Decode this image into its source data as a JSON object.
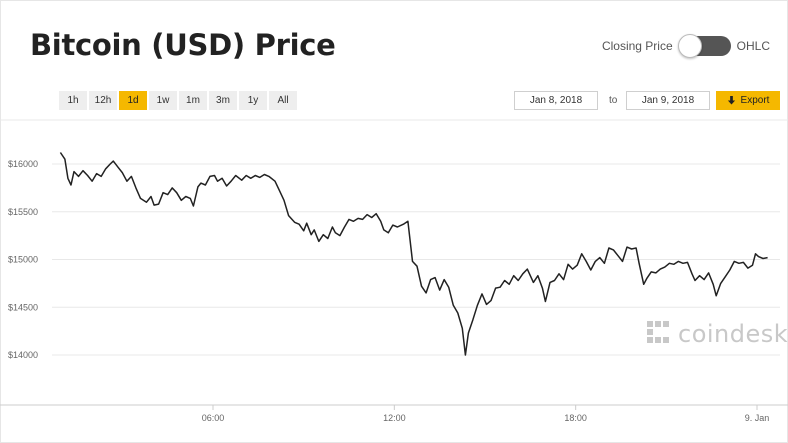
{
  "title": "Bitcoin (USD) Price",
  "toggle": {
    "left_label": "Closing Price",
    "right_label": "OHLC"
  },
  "ranges": [
    {
      "label": "1h",
      "active": false
    },
    {
      "label": "12h",
      "active": false
    },
    {
      "label": "1d",
      "active": true
    },
    {
      "label": "1w",
      "active": false
    },
    {
      "label": "1m",
      "active": false
    },
    {
      "label": "3m",
      "active": false
    },
    {
      "label": "1y",
      "active": false
    },
    {
      "label": "All",
      "active": false
    }
  ],
  "date_range": {
    "from": "Jan 8, 2018",
    "to_label": "to",
    "to": "Jan 9, 2018"
  },
  "export_label": "Export",
  "brand": {
    "name": "coindesk"
  },
  "colors": {
    "accent": "#f5b800",
    "line": "#222222",
    "grid": "#e8e8e8"
  },
  "chart_data": {
    "type": "line",
    "xlabel": "",
    "ylabel": "",
    "ylim": [
      13900,
      16100
    ],
    "yticks": [
      {
        "value": 16000,
        "label": "$16000"
      },
      {
        "value": 15500,
        "label": "$15500"
      },
      {
        "value": 15000,
        "label": "$15000"
      },
      {
        "value": 14500,
        "label": "$14500"
      },
      {
        "value": 14000,
        "label": "$14000"
      }
    ],
    "xlim": [
      0,
      24.1
    ],
    "xticks": [
      {
        "value": 5.0,
        "label": "06:00"
      },
      {
        "value": 11.0,
        "label": "12:00"
      },
      {
        "value": 17.0,
        "label": "18:00"
      },
      {
        "value": 23.0,
        "label": "9. Jan"
      }
    ],
    "series": [
      {
        "values": [
          [
            -0.05,
            16120
          ],
          [
            0.1,
            16050
          ],
          [
            0.2,
            15850
          ],
          [
            0.3,
            15780
          ],
          [
            0.4,
            15920
          ],
          [
            0.55,
            15870
          ],
          [
            0.7,
            15930
          ],
          [
            0.85,
            15880
          ],
          [
            1.0,
            15820
          ],
          [
            1.15,
            15900
          ],
          [
            1.3,
            15870
          ],
          [
            1.45,
            15950
          ],
          [
            1.6,
            16000
          ],
          [
            1.7,
            16030
          ],
          [
            1.85,
            15970
          ],
          [
            2.0,
            15910
          ],
          [
            2.15,
            15820
          ],
          [
            2.3,
            15870
          ],
          [
            2.45,
            15750
          ],
          [
            2.6,
            15640
          ],
          [
            2.8,
            15600
          ],
          [
            2.95,
            15660
          ],
          [
            3.05,
            15570
          ],
          [
            3.2,
            15580
          ],
          [
            3.35,
            15700
          ],
          [
            3.5,
            15680
          ],
          [
            3.65,
            15750
          ],
          [
            3.8,
            15700
          ],
          [
            3.95,
            15620
          ],
          [
            4.1,
            15660
          ],
          [
            4.25,
            15640
          ],
          [
            4.35,
            15560
          ],
          [
            4.5,
            15760
          ],
          [
            4.6,
            15800
          ],
          [
            4.75,
            15780
          ],
          [
            4.9,
            15870
          ],
          [
            5.05,
            15880
          ],
          [
            5.15,
            15820
          ],
          [
            5.3,
            15850
          ],
          [
            5.45,
            15770
          ],
          [
            5.6,
            15820
          ],
          [
            5.75,
            15880
          ],
          [
            5.95,
            15830
          ],
          [
            6.1,
            15880
          ],
          [
            6.25,
            15850
          ],
          [
            6.4,
            15880
          ],
          [
            6.55,
            15860
          ],
          [
            6.7,
            15890
          ],
          [
            6.85,
            15870
          ],
          [
            7.05,
            15820
          ],
          [
            7.2,
            15720
          ],
          [
            7.35,
            15620
          ],
          [
            7.5,
            15460
          ],
          [
            7.7,
            15390
          ],
          [
            7.85,
            15370
          ],
          [
            8.0,
            15300
          ],
          [
            8.1,
            15380
          ],
          [
            8.25,
            15260
          ],
          [
            8.35,
            15310
          ],
          [
            8.5,
            15190
          ],
          [
            8.65,
            15260
          ],
          [
            8.8,
            15220
          ],
          [
            8.95,
            15340
          ],
          [
            9.05,
            15280
          ],
          [
            9.2,
            15250
          ],
          [
            9.35,
            15340
          ],
          [
            9.5,
            15420
          ],
          [
            9.65,
            15400
          ],
          [
            9.8,
            15430
          ],
          [
            9.95,
            15420
          ],
          [
            10.1,
            15470
          ],
          [
            10.25,
            15440
          ],
          [
            10.4,
            15480
          ],
          [
            10.55,
            15400
          ],
          [
            10.65,
            15310
          ],
          [
            10.8,
            15280
          ],
          [
            10.95,
            15360
          ],
          [
            11.1,
            15340
          ],
          [
            11.3,
            15370
          ],
          [
            11.45,
            15400
          ],
          [
            11.6,
            14980
          ],
          [
            11.75,
            14930
          ],
          [
            11.9,
            14720
          ],
          [
            12.05,
            14650
          ],
          [
            12.2,
            14790
          ],
          [
            12.35,
            14810
          ],
          [
            12.5,
            14680
          ],
          [
            12.65,
            14790
          ],
          [
            12.8,
            14710
          ],
          [
            12.95,
            14520
          ],
          [
            13.1,
            14440
          ],
          [
            13.25,
            14280
          ],
          [
            13.35,
            14000
          ],
          [
            13.45,
            14230
          ],
          [
            13.6,
            14370
          ],
          [
            13.75,
            14520
          ],
          [
            13.9,
            14640
          ],
          [
            14.05,
            14530
          ],
          [
            14.2,
            14570
          ],
          [
            14.35,
            14700
          ],
          [
            14.5,
            14710
          ],
          [
            14.65,
            14780
          ],
          [
            14.8,
            14740
          ],
          [
            14.95,
            14830
          ],
          [
            15.1,
            14780
          ],
          [
            15.25,
            14850
          ],
          [
            15.4,
            14900
          ],
          [
            15.6,
            14760
          ],
          [
            15.75,
            14830
          ],
          [
            15.9,
            14700
          ],
          [
            16.0,
            14560
          ],
          [
            16.15,
            14760
          ],
          [
            16.3,
            14780
          ],
          [
            16.45,
            14850
          ],
          [
            16.6,
            14790
          ],
          [
            16.75,
            14950
          ],
          [
            16.9,
            14900
          ],
          [
            17.05,
            14940
          ],
          [
            17.2,
            15060
          ],
          [
            17.35,
            14980
          ],
          [
            17.5,
            14890
          ],
          [
            17.65,
            14980
          ],
          [
            17.8,
            15020
          ],
          [
            17.95,
            14960
          ],
          [
            18.1,
            15120
          ],
          [
            18.25,
            15100
          ],
          [
            18.4,
            15040
          ],
          [
            18.55,
            14980
          ],
          [
            18.7,
            15130
          ],
          [
            18.85,
            15110
          ],
          [
            19.0,
            15120
          ],
          [
            19.1,
            14960
          ],
          [
            19.25,
            14740
          ],
          [
            19.35,
            14800
          ],
          [
            19.5,
            14870
          ],
          [
            19.65,
            14860
          ],
          [
            19.8,
            14900
          ],
          [
            19.95,
            14920
          ],
          [
            20.1,
            14960
          ],
          [
            20.25,
            14950
          ],
          [
            20.4,
            14980
          ],
          [
            20.55,
            14960
          ],
          [
            20.7,
            14970
          ],
          [
            20.85,
            14850
          ],
          [
            20.95,
            14780
          ],
          [
            21.1,
            14830
          ],
          [
            21.25,
            14790
          ],
          [
            21.4,
            14860
          ],
          [
            21.55,
            14740
          ],
          [
            21.65,
            14620
          ],
          [
            21.8,
            14750
          ],
          [
            21.95,
            14820
          ],
          [
            22.1,
            14890
          ],
          [
            22.25,
            14980
          ],
          [
            22.4,
            14960
          ],
          [
            22.55,
            14970
          ],
          [
            22.7,
            14910
          ],
          [
            22.85,
            14940
          ],
          [
            22.95,
            15060
          ],
          [
            23.05,
            15030
          ],
          [
            23.2,
            15010
          ],
          [
            23.35,
            15020
          ]
        ]
      }
    ]
  }
}
